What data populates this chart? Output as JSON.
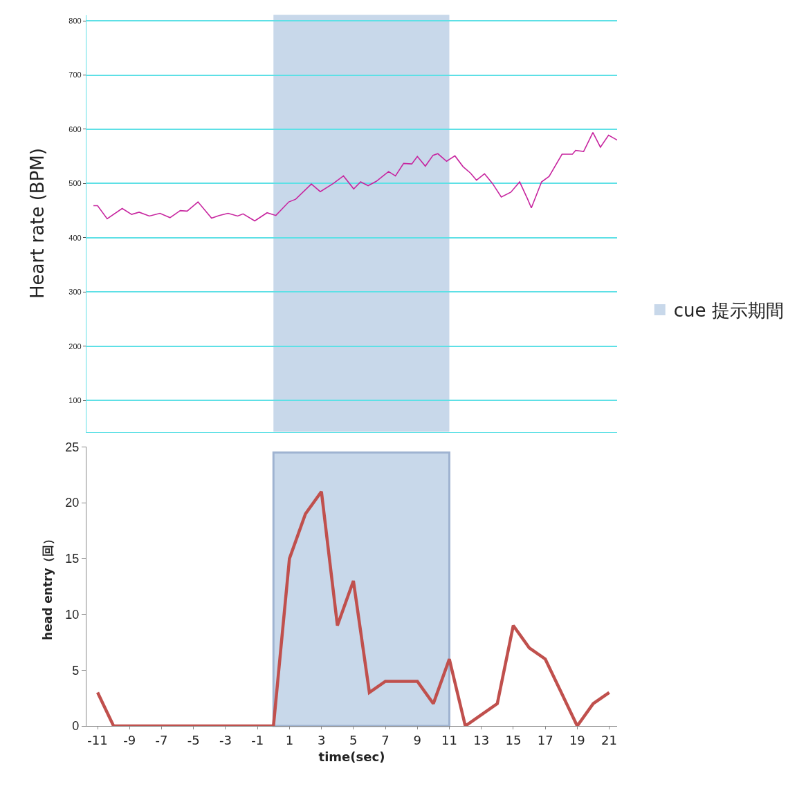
{
  "chart_data": [
    {
      "type": "line",
      "ylabel": "Heart rate (BPM)",
      "xlim": [
        -11.7,
        21.5
      ],
      "ylim": [
        42,
        811
      ],
      "yticks": [
        100,
        200,
        300,
        400,
        500,
        600,
        700,
        800
      ],
      "grid": "y",
      "tick_labels": "y",
      "marker": "none",
      "series": [
        {
          "color": "#c7259f",
          "x": [
            -11.26,
            -11.0,
            -10.4,
            -9.46,
            -8.87,
            -8.4,
            -7.76,
            -7.1,
            -6.47,
            -5.83,
            -5.4,
            -4.72,
            -3.87,
            -3.4,
            -2.84,
            -2.24,
            -1.9,
            -1.17,
            -0.4,
            0.15,
            0.96,
            1.39,
            2.37,
            2.93,
            3.74,
            4.38,
            5.02,
            5.45,
            5.92,
            6.43,
            7.2,
            7.63,
            8.14,
            8.65,
            9.0,
            9.5,
            9.98,
            10.28,
            10.83,
            11.35,
            11.86,
            12.33,
            12.7,
            13.2,
            13.7,
            14.25,
            14.85,
            15.4,
            15.9,
            16.13,
            16.77,
            17.24,
            18.05,
            18.7,
            18.9,
            19.4,
            19.98,
            20.45,
            20.96,
            21.5
          ],
          "values": [
            459,
            459,
            435,
            454,
            443,
            447,
            440,
            445,
            437,
            450,
            449,
            466,
            436,
            441,
            445,
            440,
            444,
            431,
            446,
            441,
            466,
            471,
            499,
            485,
            500,
            514,
            490,
            503,
            496,
            504,
            522,
            514,
            537,
            536,
            550,
            532,
            552,
            555,
            541,
            551,
            531,
            519,
            506,
            518,
            500,
            475,
            484,
            503,
            471,
            455,
            503,
            513,
            554,
            554,
            561,
            559,
            594,
            567,
            589,
            580
          ]
        }
      ],
      "bands": [
        {
          "axis": "x",
          "from": 0,
          "to": 11,
          "color": "#c8d8ea"
        }
      ]
    },
    {
      "type": "line",
      "xlabel": "time(sec)",
      "ylabel": "head entry（回）",
      "xlim": [
        -11.7,
        21.5
      ],
      "xticks": [
        -11,
        -9,
        -7,
        -5,
        -3,
        -1,
        1,
        3,
        5,
        7,
        9,
        11,
        13,
        15,
        17,
        19,
        21
      ],
      "ylim": [
        0,
        25
      ],
      "yticks": [
        0,
        5,
        10,
        15,
        20,
        25
      ],
      "grid": false,
      "legend": "right",
      "marker": "none",
      "x": [
        -11,
        -10,
        -9,
        -8,
        -7,
        -6,
        -5,
        -4,
        -3,
        -2,
        -1,
        0,
        1,
        2,
        3,
        4,
        5,
        6,
        7,
        8,
        9,
        10,
        11,
        12,
        13,
        14,
        15,
        16,
        17,
        18,
        19,
        20,
        21
      ],
      "series": [
        {
          "color": "#c0504d",
          "values": [
            3,
            0,
            0,
            0,
            0,
            0,
            0,
            0,
            0,
            0,
            0,
            0,
            15,
            19,
            21,
            9,
            13,
            3,
            4,
            4,
            4,
            2,
            6,
            0,
            1,
            2,
            9,
            7,
            6,
            3,
            0,
            2,
            3
          ]
        }
      ],
      "bands": [
        {
          "axis": "x",
          "from": 0,
          "to": 11,
          "label": "cue 提示期間",
          "color": "#c8d8ea"
        }
      ]
    }
  ]
}
